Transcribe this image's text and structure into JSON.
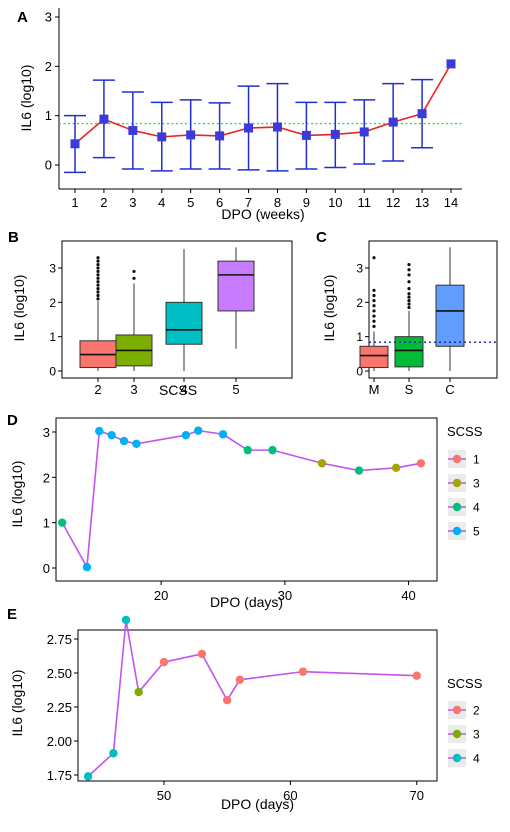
{
  "chart_data": [
    {
      "panel": "A",
      "type": "line",
      "xlabel": "DPO (weeks)",
      "ylabel": "IL6 (log10)",
      "x_ticks": [
        "1",
        "2",
        "3",
        "4",
        "5",
        "6",
        "7",
        "8",
        "9",
        "10",
        "11",
        "12",
        "13",
        "14"
      ],
      "y_ticks": [
        "0",
        "1",
        "2",
        "3"
      ],
      "ylim": [
        -0.3,
        3.1
      ],
      "reference_line": 0.84,
      "series": [
        {
          "x": [
            1,
            2,
            3,
            4,
            5,
            6,
            7,
            8,
            9,
            10,
            11,
            12,
            13,
            14
          ],
          "y": [
            0.43,
            0.93,
            0.7,
            0.57,
            0.61,
            0.59,
            0.75,
            0.77,
            0.6,
            0.62,
            0.67,
            0.87,
            1.04,
            2.05
          ],
          "lower": [
            -0.15,
            0.15,
            -0.08,
            -0.12,
            -0.08,
            -0.08,
            -0.1,
            -0.12,
            -0.08,
            -0.05,
            0.02,
            0.08,
            0.35,
            2.05
          ],
          "upper": [
            1.0,
            1.72,
            1.48,
            1.27,
            1.32,
            1.26,
            1.6,
            1.65,
            1.27,
            1.27,
            1.32,
            1.65,
            1.73,
            2.05
          ]
        }
      ],
      "colors": {
        "line": "#e8261f",
        "point": "#3b3bd9",
        "errorbar": "#2030d0",
        "reference": "#44d444"
      }
    },
    {
      "panel": "B",
      "type": "box",
      "xlabel": "SCSS",
      "ylabel": "IL6 (log10)",
      "y_ticks": [
        "0",
        "1",
        "2",
        "3"
      ],
      "ylim": [
        -0.15,
        3.7
      ],
      "categories": [
        "2",
        "3",
        "4",
        "5"
      ],
      "boxes": [
        {
          "min": 0,
          "q1": 0.1,
          "median": 0.48,
          "q3": 0.88,
          "max": 2.03,
          "outliers": [
            2.1,
            2.2,
            2.3,
            2.4,
            2.5,
            2.6,
            2.7,
            2.8,
            2.9,
            3.0,
            3.1,
            3.2,
            3.3
          ],
          "fill": "#f8766d"
        },
        {
          "min": 0,
          "q1": 0.15,
          "median": 0.6,
          "q3": 1.05,
          "max": 2.55,
          "outliers": [
            2.7,
            2.9
          ],
          "fill": "#7cae00"
        },
        {
          "min": 0,
          "q1": 0.78,
          "median": 1.2,
          "q3": 2.0,
          "max": 3.55,
          "outliers": [],
          "fill": "#00bfc4"
        },
        {
          "min": 0.65,
          "q1": 1.75,
          "median": 2.8,
          "q3": 3.2,
          "max": 3.6,
          "outliers": [],
          "fill": "#c77cff"
        }
      ]
    },
    {
      "panel": "C",
      "type": "box",
      "ylabel": "IL6 (log10)",
      "y_ticks": [
        "0",
        "1",
        "2",
        "3"
      ],
      "ylim": [
        -0.15,
        3.7
      ],
      "reference_line": 0.84,
      "categories": [
        "M",
        "S",
        "C"
      ],
      "boxes": [
        {
          "min": 0,
          "q1": 0.1,
          "median": 0.45,
          "q3": 0.72,
          "max": 1.15,
          "outliers": [
            1.3,
            1.45,
            1.6,
            1.75,
            1.9,
            2.05,
            2.2,
            2.35,
            3.3
          ],
          "fill": "#f8766d"
        },
        {
          "min": 0,
          "q1": 0.12,
          "median": 0.6,
          "q3": 1.0,
          "max": 1.75,
          "outliers": [
            1.85,
            1.95,
            2.05,
            2.15,
            2.25,
            2.4,
            2.6,
            2.8,
            2.95,
            3.1
          ],
          "fill": "#00ba38"
        },
        {
          "min": 0,
          "q1": 0.72,
          "median": 1.75,
          "q3": 2.5,
          "max": 3.6,
          "outliers": [],
          "fill": "#619cff"
        }
      ],
      "colors": {
        "reference": "#1a1a99"
      }
    },
    {
      "panel": "D",
      "type": "line",
      "xlabel": "DPO (days)",
      "ylabel": "IL6 (log10)",
      "x_ticks": [
        "20",
        "30",
        "40"
      ],
      "y_ticks": [
        "0",
        "1",
        "2",
        "3"
      ],
      "xlim": [
        11.5,
        42.3
      ],
      "ylim": [
        -0.13,
        3.15
      ],
      "legend_title": "SCSS",
      "legend_placement": "right",
      "line_color": "#c552f0",
      "points": [
        {
          "x": 12,
          "y": 1.0,
          "scss": "4"
        },
        {
          "x": 14,
          "y": 0.02,
          "scss": "5"
        },
        {
          "x": 15,
          "y": 3.02,
          "scss": "5"
        },
        {
          "x": 16,
          "y": 2.93,
          "scss": "5"
        },
        {
          "x": 17,
          "y": 2.8,
          "scss": "5"
        },
        {
          "x": 18,
          "y": 2.74,
          "scss": "5"
        },
        {
          "x": 22,
          "y": 2.93,
          "scss": "5"
        },
        {
          "x": 23,
          "y": 3.03,
          "scss": "5"
        },
        {
          "x": 25,
          "y": 2.95,
          "scss": "5"
        },
        {
          "x": 27,
          "y": 2.6,
          "scss": "4"
        },
        {
          "x": 29,
          "y": 2.6,
          "scss": "4"
        },
        {
          "x": 33,
          "y": 2.31,
          "scss": "3"
        },
        {
          "x": 36,
          "y": 2.15,
          "scss": "4"
        },
        {
          "x": 39,
          "y": 2.21,
          "scss": "3"
        },
        {
          "x": 41,
          "y": 2.31,
          "scss": "1"
        }
      ],
      "legend": [
        {
          "label": "1",
          "color": "#f8766d"
        },
        {
          "label": "3",
          "color": "#a3a500"
        },
        {
          "label": "4",
          "color": "#00bf7d"
        },
        {
          "label": "5",
          "color": "#00b0f6"
        }
      ]
    },
    {
      "panel": "E",
      "type": "line",
      "xlabel": "DPO (days)",
      "ylabel": "IL6 (log10)",
      "x_ticks": [
        "50",
        "60",
        "70"
      ],
      "y_ticks": [
        "1.75",
        "2.00",
        "2.25",
        "2.50",
        "2.75"
      ],
      "xlim": [
        43.2,
        71.6
      ],
      "ylim": [
        1.7,
        2.96
      ],
      "legend_title": "SCSS",
      "legend_placement": "right",
      "line_color": "#c552f0",
      "points": [
        {
          "x": 44,
          "y": 1.74,
          "scss": "4"
        },
        {
          "x": 46,
          "y": 1.91,
          "scss": "4"
        },
        {
          "x": 47,
          "y": 2.89,
          "scss": "4"
        },
        {
          "x": 48,
          "y": 2.36,
          "scss": "3"
        },
        {
          "x": 50,
          "y": 2.58,
          "scss": "2"
        },
        {
          "x": 53,
          "y": 2.64,
          "scss": "2"
        },
        {
          "x": 55,
          "y": 2.3,
          "scss": "2"
        },
        {
          "x": 56,
          "y": 2.45,
          "scss": "2"
        },
        {
          "x": 61,
          "y": 2.51,
          "scss": "2"
        },
        {
          "x": 70,
          "y": 2.48,
          "scss": "2"
        }
      ],
      "legend": [
        {
          "label": "2",
          "color": "#f8766d"
        },
        {
          "label": "3",
          "color": "#7cae00"
        },
        {
          "label": "4",
          "color": "#00bfc4"
        }
      ]
    }
  ],
  "scss_colors_D": {
    "1": "#f8766d",
    "3": "#a3a500",
    "4": "#00bf7d",
    "5": "#00b0f6"
  },
  "scss_colors_E": {
    "2": "#f8766d",
    "3": "#7cae00",
    "4": "#00bfc4"
  }
}
